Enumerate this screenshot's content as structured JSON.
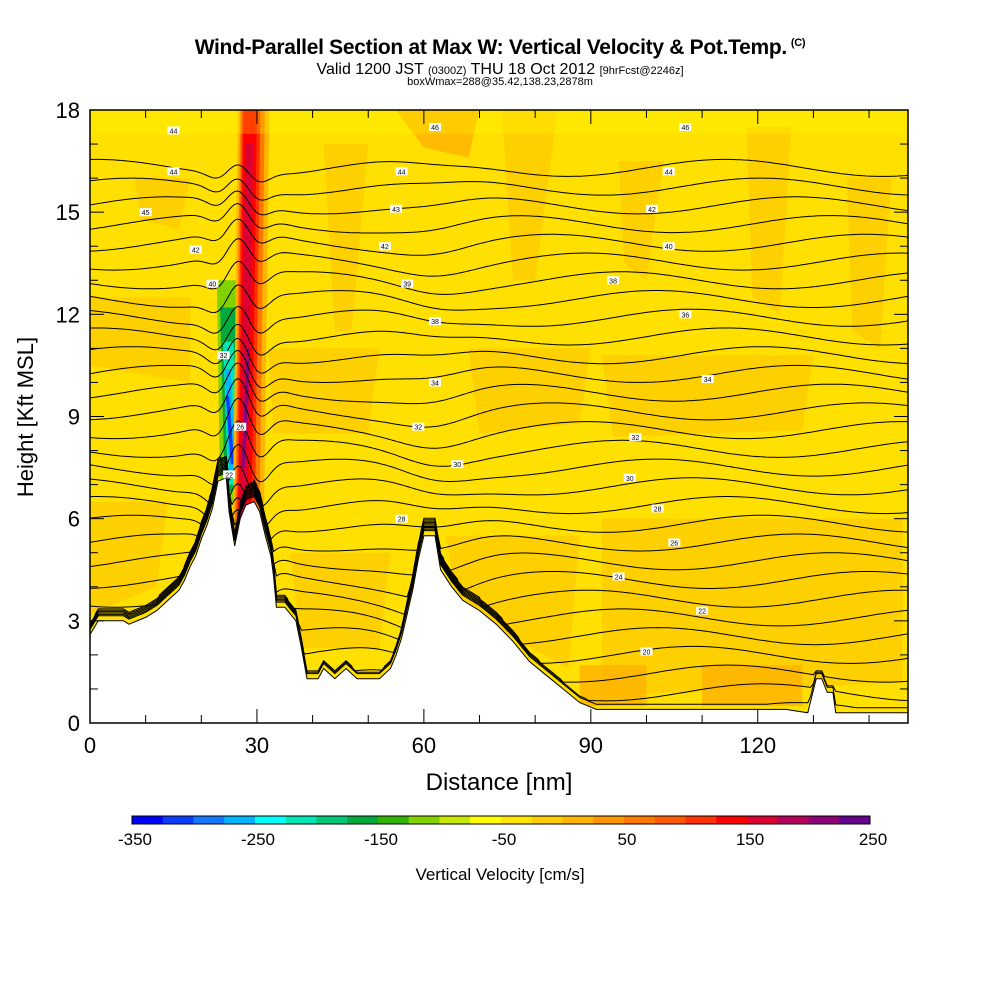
{
  "header": {
    "title": "Wind-Parallel Section at Max W: Vertical Velocity & Pot.Temp.",
    "title_mark": "(C)",
    "valid_prefix": "Valid 1200 JST",
    "valid_z": "(0300Z)",
    "valid_date": "THU 18 Oct 2012",
    "valid_fcst": "[9hrFcst@2246z]",
    "box_line": "boxWmax=288@35.42,138.23,2878m"
  },
  "colors": {
    "background_fill": "#ffe000",
    "terrain": "#ffffff",
    "contour": "#000000",
    "scale": [
      "#0000ff",
      "#0a3cff",
      "#1478ff",
      "#00b4ff",
      "#00ffff",
      "#00e6b4",
      "#00c878",
      "#00aa3c",
      "#32b400",
      "#82d200",
      "#c8e600",
      "#ffff00",
      "#ffe600",
      "#ffcd00",
      "#ffb400",
      "#ff9600",
      "#ff7800",
      "#ff5a00",
      "#ff3200",
      "#ff0000",
      "#dc0032",
      "#b4005a",
      "#8c0078",
      "#64008c"
    ]
  },
  "chart_data": {
    "type": "heatmap",
    "title": "Wind-Parallel Section at Max W: Vertical Velocity & Pot.Temp.",
    "xlabel": "Distance [nm]",
    "ylabel": "Height [Kft MSL]",
    "xlim": [
      0,
      147
    ],
    "ylim": [
      0,
      18
    ],
    "xticks": [
      0,
      30,
      60,
      90,
      120
    ],
    "yticks": [
      0,
      3,
      6,
      9,
      12,
      15,
      18
    ],
    "colorbar": {
      "label": "Vertical Velocity [cm/s]",
      "min": -350,
      "max": 275,
      "step": 25,
      "tick_values": [
        -350,
        -250,
        -150,
        -50,
        50,
        150,
        250
      ]
    },
    "terrain_profile": [
      [
        0,
        2.6
      ],
      [
        1.5,
        3.0
      ],
      [
        6,
        3.0
      ],
      [
        7,
        2.9
      ],
      [
        10,
        3.1
      ],
      [
        12,
        3.3
      ],
      [
        14,
        3.6
      ],
      [
        16,
        3.9
      ],
      [
        17,
        4.2
      ],
      [
        18,
        4.6
      ],
      [
        19,
        4.9
      ],
      [
        20,
        5.4
      ],
      [
        21,
        5.8
      ],
      [
        22,
        6.3
      ],
      [
        23,
        7.1
      ],
      [
        24.5,
        7.2
      ],
      [
        25,
        6.2
      ],
      [
        26,
        5.2
      ],
      [
        27,
        6.0
      ],
      [
        28,
        6.4
      ],
      [
        29.5,
        6.5
      ],
      [
        30.5,
        6.2
      ],
      [
        31.5,
        5.5
      ],
      [
        32.5,
        4.9
      ],
      [
        33,
        4.3
      ],
      [
        33.5,
        3.4
      ],
      [
        35,
        3.4
      ],
      [
        37,
        3.0
      ],
      [
        38,
        2.2
      ],
      [
        39,
        1.3
      ],
      [
        41,
        1.3
      ],
      [
        42,
        1.6
      ],
      [
        44,
        1.3
      ],
      [
        46,
        1.6
      ],
      [
        48,
        1.3
      ],
      [
        52,
        1.3
      ],
      [
        54,
        1.6
      ],
      [
        55,
        2.0
      ],
      [
        56,
        2.5
      ],
      [
        57,
        3.2
      ],
      [
        58,
        3.9
      ],
      [
        59,
        4.8
      ],
      [
        60,
        5.5
      ],
      [
        62,
        5.5
      ],
      [
        63,
        4.5
      ],
      [
        65,
        4.0
      ],
      [
        67,
        3.6
      ],
      [
        70,
        3.3
      ],
      [
        73,
        2.9
      ],
      [
        76,
        2.4
      ],
      [
        79,
        1.8
      ],
      [
        82,
        1.4
      ],
      [
        85,
        1.0
      ],
      [
        88,
        0.6
      ],
      [
        91,
        0.4
      ],
      [
        100,
        0.4
      ],
      [
        110,
        0.4
      ],
      [
        118,
        0.4
      ],
      [
        125,
        0.4
      ],
      [
        129,
        0.3
      ],
      [
        130.5,
        1.3
      ],
      [
        131.5,
        1.3
      ],
      [
        132.5,
        0.9
      ],
      [
        133.5,
        0.9
      ],
      [
        134,
        0.3
      ],
      [
        147,
        0.3
      ]
    ],
    "theta_contours": {
      "units": "C",
      "labels": [
        {
          "x": 15,
          "y": 17.4,
          "value": "44"
        },
        {
          "x": 15,
          "y": 16.2,
          "value": "44"
        },
        {
          "x": 10,
          "y": 15.0,
          "value": "45"
        },
        {
          "x": 19,
          "y": 13.9,
          "value": "42"
        },
        {
          "x": 22,
          "y": 12.9,
          "value": "40"
        },
        {
          "x": 24,
          "y": 10.8,
          "value": "32"
        },
        {
          "x": 27,
          "y": 8.7,
          "value": "26"
        },
        {
          "x": 25,
          "y": 7.3,
          "value": "22"
        },
        {
          "x": 62,
          "y": 17.5,
          "value": "46"
        },
        {
          "x": 56,
          "y": 16.2,
          "value": "44"
        },
        {
          "x": 55,
          "y": 15.1,
          "value": "43"
        },
        {
          "x": 53,
          "y": 14.0,
          "value": "42"
        },
        {
          "x": 57,
          "y": 12.9,
          "value": "39"
        },
        {
          "x": 62,
          "y": 11.8,
          "value": "38"
        },
        {
          "x": 62,
          "y": 10.0,
          "value": "34"
        },
        {
          "x": 59,
          "y": 8.7,
          "value": "32"
        },
        {
          "x": 66,
          "y": 7.6,
          "value": "30"
        },
        {
          "x": 56,
          "y": 6.0,
          "value": "28"
        },
        {
          "x": 107,
          "y": 17.5,
          "value": "46"
        },
        {
          "x": 104,
          "y": 16.2,
          "value": "44"
        },
        {
          "x": 101,
          "y": 15.1,
          "value": "42"
        },
        {
          "x": 104,
          "y": 14.0,
          "value": "40"
        },
        {
          "x": 94,
          "y": 13.0,
          "value": "38"
        },
        {
          "x": 107,
          "y": 12.0,
          "value": "36"
        },
        {
          "x": 111,
          "y": 10.1,
          "value": "34"
        },
        {
          "x": 98,
          "y": 8.4,
          "value": "32"
        },
        {
          "x": 97,
          "y": 7.2,
          "value": "30"
        },
        {
          "x": 102,
          "y": 6.3,
          "value": "28"
        },
        {
          "x": 105,
          "y": 5.3,
          "value": "26"
        },
        {
          "x": 95,
          "y": 4.3,
          "value": "24"
        },
        {
          "x": 110,
          "y": 3.3,
          "value": "22"
        },
        {
          "x": 100,
          "y": 2.1,
          "value": "20"
        }
      ]
    },
    "updraft_max": {
      "value": 288,
      "x": 27,
      "label": "boxWmax=288"
    }
  }
}
